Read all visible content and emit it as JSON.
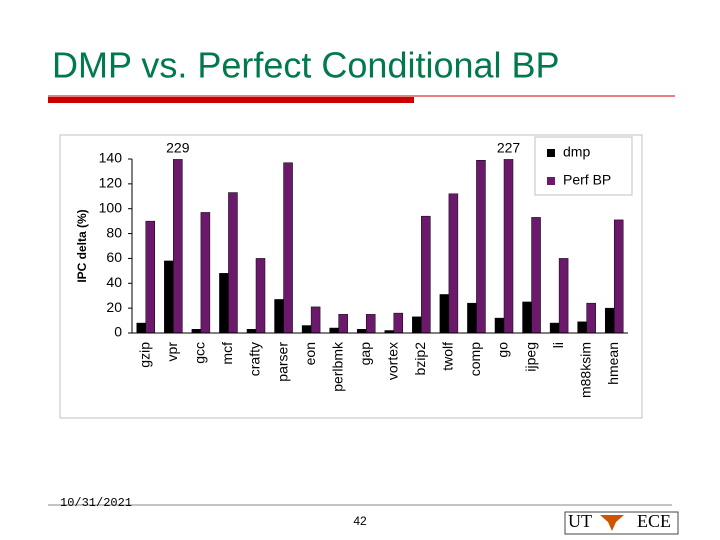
{
  "slide": {
    "title": "DMP vs. Perfect Conditional BP",
    "date": "10/31/2021",
    "page": "42",
    "logo": [
      "UT",
      "ECE"
    ]
  },
  "chart_data": {
    "type": "bar",
    "ylabel": "IPC delta (%)",
    "categories": [
      "gzip",
      "vpr",
      "gcc",
      "mcf",
      "crafty",
      "parser",
      "eon",
      "perlbmk",
      "gap",
      "vortex",
      "bzip2",
      "twolf",
      "comp",
      "go",
      "ijpeg",
      "li",
      "m88ksim",
      "hmean"
    ],
    "series": [
      {
        "name": "dmp",
        "color": "#000000",
        "values": [
          8,
          58,
          3,
          48,
          3,
          27,
          6,
          4,
          3,
          2,
          13,
          31,
          24,
          12,
          25,
          8,
          9,
          20
        ]
      },
      {
        "name": "Perf BP",
        "color": "#6b1a6b",
        "values": [
          90,
          229,
          97,
          113,
          60,
          137,
          21,
          15,
          15,
          16,
          94,
          112,
          139,
          227,
          93,
          60,
          24,
          91
        ],
        "value_labels": [
          null,
          "229",
          null,
          null,
          null,
          null,
          null,
          null,
          null,
          null,
          null,
          null,
          null,
          "227",
          null,
          null,
          null,
          null
        ]
      }
    ],
    "ylim": [
      0,
      140
    ],
    "yticks": [
      0,
      20,
      40,
      60,
      80,
      100,
      120,
      140
    ],
    "grid": false,
    "legend": "upper right"
  }
}
